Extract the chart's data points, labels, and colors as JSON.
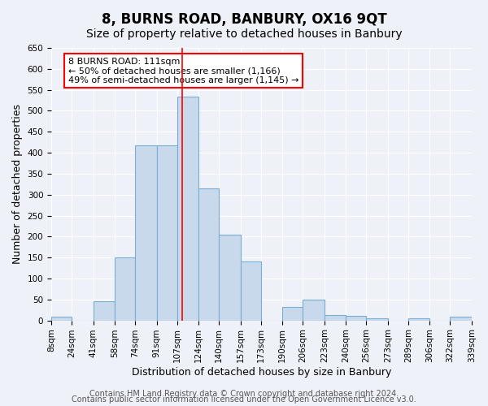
{
  "title": "8, BURNS ROAD, BANBURY, OX16 9QT",
  "subtitle": "Size of property relative to detached houses in Banbury",
  "xlabel": "Distribution of detached houses by size in Banbury",
  "ylabel": "Number of detached properties",
  "bin_labels": [
    "8sqm",
    "24sqm",
    "41sqm",
    "58sqm",
    "74sqm",
    "91sqm",
    "107sqm",
    "124sqm",
    "140sqm",
    "157sqm",
    "173sqm",
    "190sqm",
    "206sqm",
    "223sqm",
    "240sqm",
    "256sqm",
    "273sqm",
    "289sqm",
    "306sqm",
    "322sqm",
    "339sqm"
  ],
  "bin_edges": [
    8,
    24,
    41,
    58,
    74,
    91,
    107,
    124,
    140,
    157,
    173,
    190,
    206,
    223,
    240,
    256,
    273,
    289,
    306,
    322,
    339
  ],
  "bar_heights": [
    8,
    0,
    45,
    150,
    418,
    418,
    533,
    315,
    205,
    140,
    0,
    33,
    49,
    13,
    10,
    5,
    0,
    5,
    0,
    8
  ],
  "bar_color": "#c9d9ec",
  "bar_edge_color": "#7aadd4",
  "vline_x": 111,
  "vline_color": "red",
  "ylim": [
    0,
    650
  ],
  "yticks": [
    0,
    50,
    100,
    150,
    200,
    250,
    300,
    350,
    400,
    450,
    500,
    550,
    600,
    650
  ],
  "annotation_title": "8 BURNS ROAD: 111sqm",
  "annotation_line1": "← 50% of detached houses are smaller (1,166)",
  "annotation_line2": "49% of semi-detached houses are larger (1,145) →",
  "annotation_box_color": "#ffffff",
  "annotation_box_edge": "red",
  "footer1": "Contains HM Land Registry data © Crown copyright and database right 2024.",
  "footer2": "Contains public sector information licensed under the Open Government Licence v3.0.",
  "bg_color": "#eef2f8",
  "plot_bg_color": "#eef2f8",
  "grid_color": "#ffffff",
  "title_fontsize": 12,
  "subtitle_fontsize": 10,
  "xlabel_fontsize": 9,
  "ylabel_fontsize": 9,
  "tick_fontsize": 7.5,
  "footer_fontsize": 7
}
